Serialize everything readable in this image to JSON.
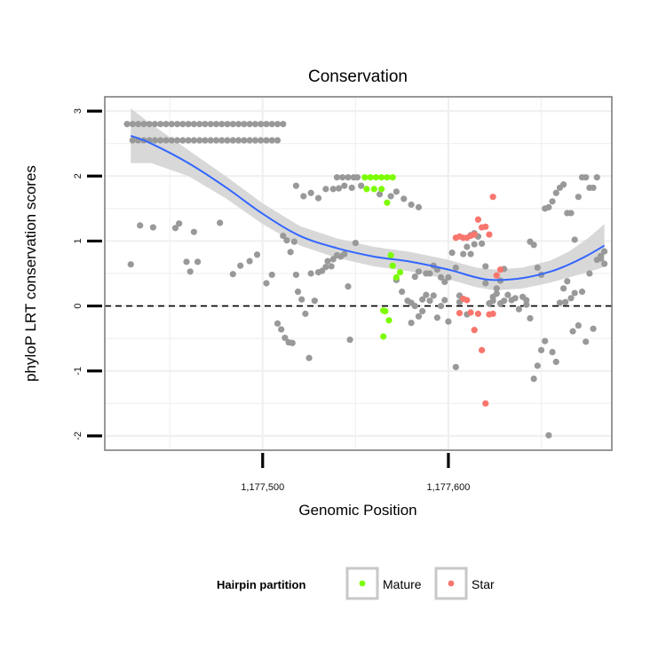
{
  "chart_data": {
    "type": "scatter",
    "title": "Conservation",
    "xlabel": "Genomic Position",
    "ylabel": "phyloP LRT conservation scores",
    "xlim": [
      1177415,
      1177688
    ],
    "ylim": [
      -2.22,
      3.22
    ],
    "x_ticks": [
      1177500,
      1177600
    ],
    "x_tick_labels": [
      "1,177,500",
      "1,177,600"
    ],
    "y_ticks": [
      -2,
      -1,
      0,
      1,
      2,
      3
    ],
    "y_tick_labels": [
      "-2",
      "-1",
      "0",
      "1",
      "2",
      "3"
    ],
    "reference_line": {
      "y": 0,
      "style": "dashed"
    },
    "grid": true,
    "legend": {
      "title": "Hairpin partition",
      "position": "bottom",
      "entries": [
        {
          "label": "Mature",
          "color": "#7CFC00"
        },
        {
          "label": "Star",
          "color": "#F8766D"
        }
      ]
    },
    "colors": {
      "other": "#999999",
      "mature": "#7CFC00",
      "star": "#F8766D",
      "smooth": "#3366FF",
      "band": "#D0D0D0"
    },
    "series": [
      {
        "name": "Other",
        "color": "#999999",
        "points": [
          [
            1177427,
            2.8
          ],
          [
            1177430,
            2.8
          ],
          [
            1177433,
            2.8
          ],
          [
            1177436,
            2.8
          ],
          [
            1177439,
            2.8
          ],
          [
            1177442,
            2.8
          ],
          [
            1177445,
            2.8
          ],
          [
            1177448,
            2.8
          ],
          [
            1177451,
            2.8
          ],
          [
            1177454,
            2.8
          ],
          [
            1177457,
            2.8
          ],
          [
            1177460,
            2.8
          ],
          [
            1177463,
            2.8
          ],
          [
            1177466,
            2.8
          ],
          [
            1177469,
            2.8
          ],
          [
            1177472,
            2.8
          ],
          [
            1177475,
            2.8
          ],
          [
            1177478,
            2.8
          ],
          [
            1177481,
            2.8
          ],
          [
            1177484,
            2.8
          ],
          [
            1177487,
            2.8
          ],
          [
            1177490,
            2.8
          ],
          [
            1177493,
            2.8
          ],
          [
            1177496,
            2.8
          ],
          [
            1177499,
            2.8
          ],
          [
            1177502,
            2.8
          ],
          [
            1177505,
            2.8
          ],
          [
            1177508,
            2.8
          ],
          [
            1177511,
            2.8
          ],
          [
            1177430,
            2.55
          ],
          [
            1177433,
            2.55
          ],
          [
            1177436,
            2.55
          ],
          [
            1177439,
            2.55
          ],
          [
            1177442,
            2.55
          ],
          [
            1177445,
            2.55
          ],
          [
            1177448,
            2.55
          ],
          [
            1177451,
            2.55
          ],
          [
            1177454,
            2.55
          ],
          [
            1177457,
            2.55
          ],
          [
            1177460,
            2.55
          ],
          [
            1177463,
            2.55
          ],
          [
            1177466,
            2.55
          ],
          [
            1177469,
            2.55
          ],
          [
            1177472,
            2.55
          ],
          [
            1177475,
            2.55
          ],
          [
            1177478,
            2.55
          ],
          [
            1177481,
            2.55
          ],
          [
            1177484,
            2.55
          ],
          [
            1177487,
            2.55
          ],
          [
            1177490,
            2.55
          ],
          [
            1177493,
            2.55
          ],
          [
            1177496,
            2.55
          ],
          [
            1177499,
            2.55
          ],
          [
            1177502,
            2.55
          ],
          [
            1177505,
            2.55
          ],
          [
            1177508,
            2.55
          ],
          [
            1177429,
            0.64
          ],
          [
            1177434,
            1.24
          ],
          [
            1177441,
            1.21
          ],
          [
            1177453,
            1.2
          ],
          [
            1177455,
            1.27
          ],
          [
            1177459,
            0.68
          ],
          [
            1177461,
            0.53
          ],
          [
            1177463,
            1.14
          ],
          [
            1177465,
            0.68
          ],
          [
            1177477,
            1.28
          ],
          [
            1177484,
            0.49
          ],
          [
            1177488,
            0.62
          ],
          [
            1177493,
            0.69
          ],
          [
            1177497,
            0.79
          ],
          [
            1177502,
            0.35
          ],
          [
            1177505,
            0.48
          ],
          [
            1177508,
            -0.27
          ],
          [
            1177510,
            -0.36
          ],
          [
            1177512,
            -0.49
          ],
          [
            1177514,
            -0.56
          ],
          [
            1177516,
            -0.57
          ],
          [
            1177511,
            1.08
          ],
          [
            1177513,
            1.01
          ],
          [
            1177515,
            0.83
          ],
          [
            1177517,
            0.99
          ],
          [
            1177518,
            0.48
          ],
          [
            1177519,
            0.22
          ],
          [
            1177521,
            0.1
          ],
          [
            1177523,
            -0.12
          ],
          [
            1177525,
            -0.8
          ],
          [
            1177526,
            0.5
          ],
          [
            1177528,
            0.08
          ],
          [
            1177530,
            0.52
          ],
          [
            1177532,
            0.54
          ],
          [
            1177534,
            0.6
          ],
          [
            1177535,
            0.69
          ],
          [
            1177537,
            0.61
          ],
          [
            1177538,
            0.72
          ],
          [
            1177540,
            0.78
          ],
          [
            1177542,
            0.76
          ],
          [
            1177544,
            0.8
          ],
          [
            1177546,
            0.3
          ],
          [
            1177547,
            -0.52
          ],
          [
            1177550,
            0.97
          ],
          [
            1177518,
            1.85
          ],
          [
            1177522,
            1.69
          ],
          [
            1177526,
            1.74
          ],
          [
            1177530,
            1.66
          ],
          [
            1177534,
            1.8
          ],
          [
            1177538,
            1.8
          ],
          [
            1177541,
            1.81
          ],
          [
            1177544,
            1.85
          ],
          [
            1177548,
            1.82
          ],
          [
            1177546,
            1.98
          ],
          [
            1177549,
            1.98
          ],
          [
            1177551,
            1.98
          ],
          [
            1177553,
            1.85
          ],
          [
            1177540,
            1.98
          ],
          [
            1177543,
            1.98
          ],
          [
            1177563,
            1.72
          ],
          [
            1177569,
            1.69
          ],
          [
            1177572,
            1.76
          ],
          [
            1177576,
            1.65
          ],
          [
            1177580,
            1.56
          ],
          [
            1177584,
            1.52
          ],
          [
            1177572,
            0.4
          ],
          [
            1177575,
            0.22
          ],
          [
            1177578,
            0.08
          ],
          [
            1177580,
            0.05
          ],
          [
            1177582,
            0.45
          ],
          [
            1177584,
            0.53
          ],
          [
            1177586,
            0.1
          ],
          [
            1177588,
            0.5
          ],
          [
            1177590,
            0.5
          ],
          [
            1177592,
            0.62
          ],
          [
            1177594,
            0.56
          ],
          [
            1177596,
            0.44
          ],
          [
            1177598,
            0.37
          ],
          [
            1177600,
            0.44
          ],
          [
            1177602,
            0.82
          ],
          [
            1177604,
            0.59
          ],
          [
            1177606,
            0.16
          ],
          [
            1177608,
            0.8
          ],
          [
            1177610,
            0.91
          ],
          [
            1177612,
            0.8
          ],
          [
            1177614,
            1.12
          ],
          [
            1177616,
            1.07
          ],
          [
            1177618,
            0.96
          ],
          [
            1177620,
            0.61
          ],
          [
            1177622,
            0.04
          ],
          [
            1177624,
            0.08
          ],
          [
            1177626,
            0.27
          ],
          [
            1177628,
            0.39
          ],
          [
            1177630,
            0.57
          ],
          [
            1177580,
            -0.26
          ],
          [
            1177582,
            0.0
          ],
          [
            1177584,
            -0.16
          ],
          [
            1177586,
            -0.08
          ],
          [
            1177588,
            0.17
          ],
          [
            1177590,
            0.08
          ],
          [
            1177592,
            0.16
          ],
          [
            1177594,
            -0.18
          ],
          [
            1177596,
            0.0
          ],
          [
            1177598,
            0.09
          ],
          [
            1177600,
            -0.24
          ],
          [
            1177604,
            -0.94
          ],
          [
            1177606,
            0.06
          ],
          [
            1177610,
            -0.13
          ],
          [
            1177612,
            1.09
          ],
          [
            1177614,
            0.95
          ],
          [
            1177616,
            1.07
          ],
          [
            1177620,
            0.35
          ],
          [
            1177624,
            0.14
          ],
          [
            1177626,
            0.19
          ],
          [
            1177628,
            0.04
          ],
          [
            1177630,
            0.08
          ],
          [
            1177632,
            0.17
          ],
          [
            1177634,
            0.09
          ],
          [
            1177636,
            0.12
          ],
          [
            1177638,
            -0.05
          ],
          [
            1177640,
            0.14
          ],
          [
            1177642,
            0.02
          ],
          [
            1177644,
            -0.19
          ],
          [
            1177646,
            -1.12
          ],
          [
            1177648,
            -0.92
          ],
          [
            1177650,
            -0.68
          ],
          [
            1177652,
            -0.54
          ],
          [
            1177654,
            -1.99
          ],
          [
            1177656,
            -0.71
          ],
          [
            1177658,
            -0.86
          ],
          [
            1177660,
            0.05
          ],
          [
            1177662,
            0.27
          ],
          [
            1177663,
            0.06
          ],
          [
            1177664,
            0.38
          ],
          [
            1177666,
            0.12
          ],
          [
            1177667,
            -0.39
          ],
          [
            1177668,
            0.2
          ],
          [
            1177670,
            -0.3
          ],
          [
            1177672,
            0.22
          ],
          [
            1177674,
            -0.55
          ],
          [
            1177676,
            0.5
          ],
          [
            1177678,
            -0.35
          ],
          [
            1177680,
            0.71
          ],
          [
            1177682,
            0.73
          ],
          [
            1177684,
            0.84
          ],
          [
            1177642,
            0.09
          ],
          [
            1177644,
            0.99
          ],
          [
            1177646,
            0.94
          ],
          [
            1177648,
            0.59
          ],
          [
            1177650,
            0.48
          ],
          [
            1177652,
            1.5
          ],
          [
            1177654,
            1.52
          ],
          [
            1177656,
            1.61
          ],
          [
            1177658,
            1.74
          ],
          [
            1177660,
            1.82
          ],
          [
            1177662,
            1.87
          ],
          [
            1177664,
            1.43
          ],
          [
            1177666,
            1.43
          ],
          [
            1177668,
            1.02
          ],
          [
            1177670,
            1.68
          ],
          [
            1177672,
            1.98
          ],
          [
            1177674,
            1.98
          ],
          [
            1177676,
            1.82
          ],
          [
            1177678,
            1.82
          ],
          [
            1177680,
            1.98
          ],
          [
            1177682,
            0.77
          ],
          [
            1177684,
            0.65
          ]
        ]
      },
      {
        "name": "Mature",
        "color": "#7CFC00",
        "points": [
          [
            1177555,
            1.98
          ],
          [
            1177558,
            1.98
          ],
          [
            1177561,
            1.98
          ],
          [
            1177564,
            1.98
          ],
          [
            1177567,
            1.98
          ],
          [
            1177570,
            1.98
          ],
          [
            1177556,
            1.8
          ],
          [
            1177560,
            1.8
          ],
          [
            1177564,
            1.8
          ],
          [
            1177567,
            1.59
          ],
          [
            1177569,
            0.78
          ],
          [
            1177570,
            0.62
          ],
          [
            1177572,
            0.44
          ],
          [
            1177574,
            0.52
          ],
          [
            1177565,
            -0.07
          ],
          [
            1177566,
            -0.08
          ],
          [
            1177568,
            -0.22
          ],
          [
            1177565,
            -0.47
          ]
        ]
      },
      {
        "name": "Star",
        "color": "#F8766D",
        "points": [
          [
            1177604,
            1.05
          ],
          [
            1177606,
            1.07
          ],
          [
            1177608,
            1.05
          ],
          [
            1177610,
            1.05
          ],
          [
            1177612,
            1.08
          ],
          [
            1177614,
            1.1
          ],
          [
            1177616,
            1.33
          ],
          [
            1177618,
            1.21
          ],
          [
            1177620,
            1.22
          ],
          [
            1177622,
            1.1
          ],
          [
            1177624,
            1.68
          ],
          [
            1177628,
            0.56
          ],
          [
            1177606,
            -0.11
          ],
          [
            1177608,
            0.11
          ],
          [
            1177610,
            0.09
          ],
          [
            1177612,
            -0.1
          ],
          [
            1177614,
            -0.37
          ],
          [
            1177616,
            -0.12
          ],
          [
            1177618,
            -0.68
          ],
          [
            1177620,
            -1.5
          ],
          [
            1177622,
            -0.13
          ],
          [
            1177624,
            -0.12
          ],
          [
            1177626,
            0.47
          ]
        ]
      }
    ],
    "smooth": {
      "x": [
        1177429,
        1177440,
        1177460,
        1177480,
        1177500,
        1177520,
        1177540,
        1177560,
        1177580,
        1177600,
        1177615,
        1177625,
        1177640,
        1177655,
        1177665,
        1177675,
        1177684
      ],
      "y": [
        2.62,
        2.5,
        2.2,
        1.83,
        1.42,
        1.08,
        0.89,
        0.76,
        0.68,
        0.56,
        0.44,
        0.4,
        0.43,
        0.53,
        0.64,
        0.78,
        0.93
      ],
      "band_half_width": [
        0.42,
        0.3,
        0.2,
        0.17,
        0.16,
        0.15,
        0.15,
        0.15,
        0.15,
        0.15,
        0.15,
        0.16,
        0.16,
        0.17,
        0.2,
        0.26,
        0.33
      ]
    }
  }
}
